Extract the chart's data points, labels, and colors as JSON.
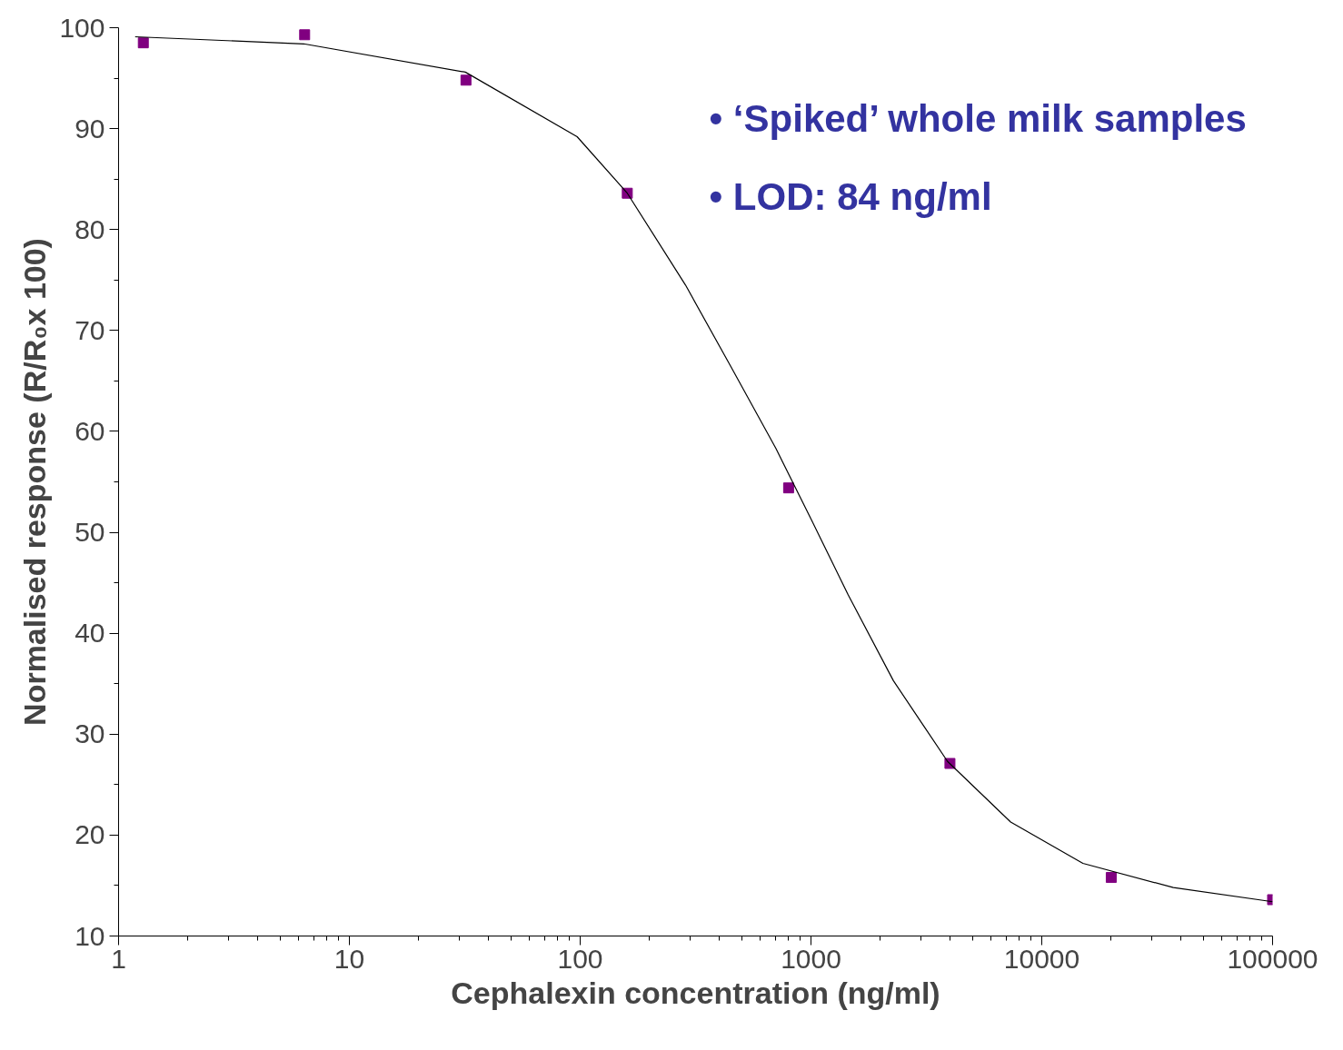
{
  "chart_data": {
    "type": "scatter",
    "xlabel": "Cephalexin concentration (ng/ml)",
    "ylabel": "Normalised response (R/R₀x 100)",
    "log": "x",
    "xlim": [
      1,
      100000
    ],
    "ylim": [
      10,
      100
    ],
    "xticks": [
      1,
      10,
      100,
      1000,
      10000,
      100000
    ],
    "yticks": [
      10,
      20,
      30,
      40,
      50,
      60,
      70,
      80,
      90,
      100
    ],
    "grid": false,
    "annotations": [
      "• ‘Spiked’ whole milk samples",
      "• LOD: 84 ng/ml"
    ],
    "series": [
      {
        "marker": "square",
        "color": "#800080",
        "x": [
          1.28,
          6.4,
          32,
          160,
          800,
          4000,
          20000,
          100000
        ],
        "values": [
          98.5,
          99.3,
          94.8,
          83.6,
          54.4,
          27.1,
          15.8,
          13.6
        ]
      },
      {
        "type": "line",
        "marker": "none",
        "line_style": "solid",
        "color": "#000000",
        "x": [
          1.18,
          6.34,
          31.8,
          97,
          160,
          286,
          450,
          705,
          1011,
          1450,
          2275,
          3905,
          7330,
          15070,
          37140,
          100000
        ],
        "values": [
          99.1,
          98.4,
          95.6,
          89.2,
          83.6,
          74.5,
          66.4,
          58.3,
          51.1,
          43.8,
          35.3,
          27.3,
          21.3,
          17.2,
          14.8,
          13.4
        ]
      }
    ]
  }
}
